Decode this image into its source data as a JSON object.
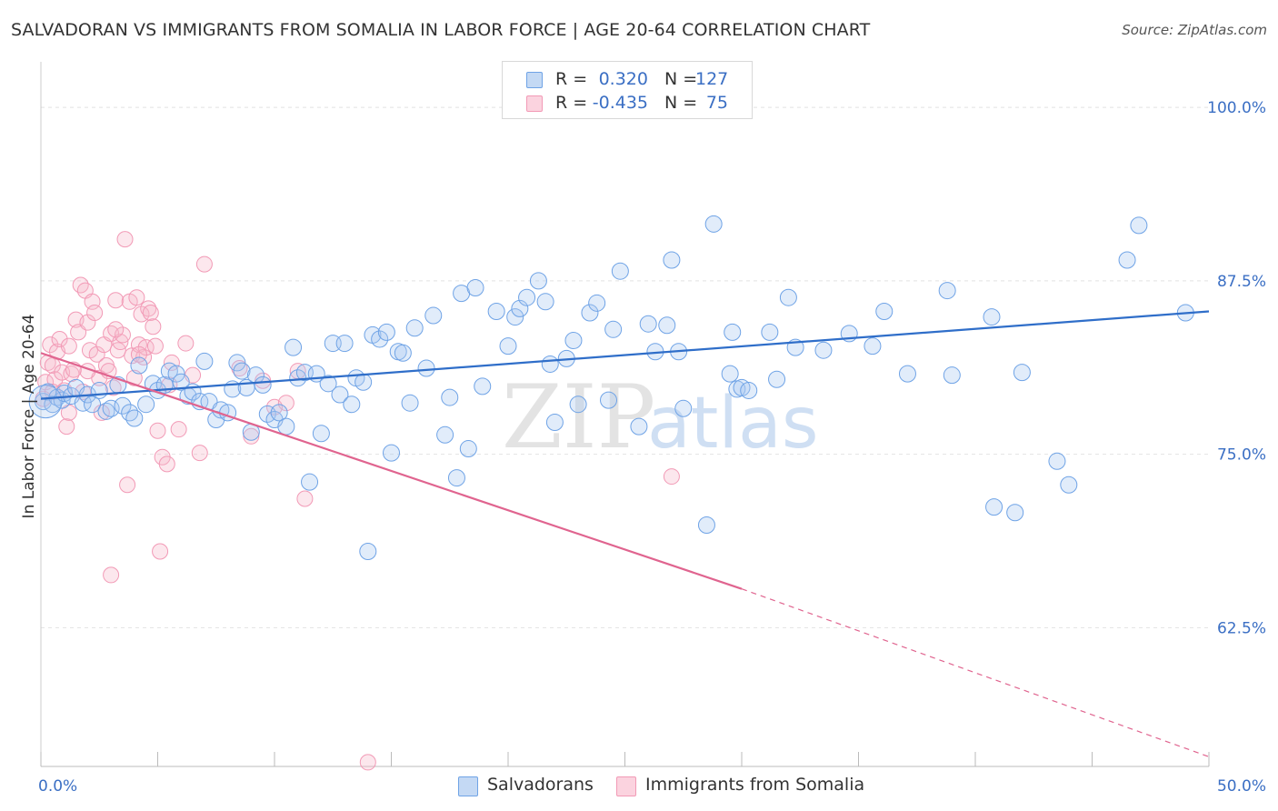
{
  "title": "SALVADORAN VS IMMIGRANTS FROM SOMALIA IN LABOR FORCE | AGE 20-64 CORRELATION CHART",
  "source": "Source: ZipAtlas.com",
  "watermark": {
    "zip": "ZIP",
    "atlas": "atlas"
  },
  "legend": [
    {
      "r_label": "R =",
      "r_value": "0.320",
      "n_label": "N =",
      "n_value": "127",
      "color": "#a9c8f0"
    },
    {
      "r_label": "R =",
      "r_value": "-0.435",
      "n_label": "N =",
      "n_value": "75",
      "color": "#f7b9cc"
    }
  ],
  "bottom_legend": [
    "Salvadorans",
    "Immigrants from Somalia"
  ],
  "chart_data": {
    "type": "scatter",
    "title": "SALVADORAN VS IMMIGRANTS FROM SOMALIA IN LABOR FORCE | AGE 20-64 CORRELATION CHART",
    "xlabel": "",
    "ylabel": "In Labor Force | Age 20-64",
    "xlim": [
      0,
      50
    ],
    "ylim": [
      52.5,
      102.5
    ],
    "x_tick_labels": [
      "0.0%",
      "50.0%"
    ],
    "y_ticks": [
      100,
      87.5,
      75,
      62.5
    ],
    "y_tick_labels": [
      "100.0%",
      "87.5%",
      "75.0%",
      "62.5%"
    ],
    "grid": true,
    "legend_position": "top-center",
    "series": [
      {
        "name": "Salvadorans",
        "color": "#6fa3e6",
        "trend": {
          "x": [
            0,
            50
          ],
          "y": [
            79.0,
            85.3
          ],
          "color": "#2f6ec9"
        },
        "points": [
          [
            0.1,
            78.8
          ],
          [
            0.3,
            79.5
          ],
          [
            0.5,
            78.6
          ],
          [
            0.7,
            79.1
          ],
          [
            0.9,
            78.9
          ],
          [
            1.0,
            79.4
          ],
          [
            1.3,
            79.2
          ],
          [
            1.5,
            79.8
          ],
          [
            1.8,
            78.7
          ],
          [
            2.0,
            79.3
          ],
          [
            2.2,
            78.6
          ],
          [
            2.5,
            79.6
          ],
          [
            2.8,
            78.1
          ],
          [
            3.0,
            78.3
          ],
          [
            3.3,
            80.0
          ],
          [
            3.5,
            78.5
          ],
          [
            3.8,
            78.0
          ],
          [
            4.0,
            77.6
          ],
          [
            4.2,
            81.4
          ],
          [
            4.5,
            78.6
          ],
          [
            4.8,
            80.1
          ],
          [
            5.0,
            79.6
          ],
          [
            5.3,
            80.0
          ],
          [
            5.5,
            81.0
          ],
          [
            5.8,
            80.8
          ],
          [
            6.0,
            80.2
          ],
          [
            6.3,
            79.2
          ],
          [
            6.5,
            79.5
          ],
          [
            6.8,
            78.8
          ],
          [
            7.0,
            81.7
          ],
          [
            7.2,
            78.8
          ],
          [
            7.5,
            77.5
          ],
          [
            7.7,
            78.2
          ],
          [
            8.0,
            78.0
          ],
          [
            8.2,
            79.7
          ],
          [
            8.4,
            81.6
          ],
          [
            8.6,
            81.0
          ],
          [
            8.8,
            79.8
          ],
          [
            9.0,
            76.6
          ],
          [
            9.2,
            80.7
          ],
          [
            9.5,
            80.0
          ],
          [
            9.7,
            77.9
          ],
          [
            10.0,
            77.5
          ],
          [
            10.2,
            78.0
          ],
          [
            10.5,
            77.0
          ],
          [
            10.8,
            82.7
          ],
          [
            11.0,
            80.5
          ],
          [
            11.3,
            80.9
          ],
          [
            11.5,
            73.0
          ],
          [
            11.8,
            80.8
          ],
          [
            12.0,
            76.5
          ],
          [
            12.3,
            80.1
          ],
          [
            12.5,
            83.0
          ],
          [
            12.8,
            79.3
          ],
          [
            13.0,
            83.0
          ],
          [
            13.3,
            78.6
          ],
          [
            13.5,
            80.5
          ],
          [
            13.8,
            80.2
          ],
          [
            14.0,
            68.0
          ],
          [
            14.2,
            83.6
          ],
          [
            14.5,
            83.3
          ],
          [
            14.8,
            83.8
          ],
          [
            15.0,
            75.1
          ],
          [
            15.3,
            82.4
          ],
          [
            15.5,
            82.3
          ],
          [
            15.8,
            78.7
          ],
          [
            16.0,
            84.1
          ],
          [
            16.5,
            81.2
          ],
          [
            16.8,
            85.0
          ],
          [
            17.3,
            76.4
          ],
          [
            17.5,
            79.1
          ],
          [
            17.8,
            73.3
          ],
          [
            18.0,
            86.6
          ],
          [
            18.3,
            75.4
          ],
          [
            18.6,
            87.0
          ],
          [
            18.9,
            79.9
          ],
          [
            19.5,
            85.3
          ],
          [
            20.0,
            82.8
          ],
          [
            20.3,
            84.9
          ],
          [
            20.5,
            85.5
          ],
          [
            20.8,
            86.3
          ],
          [
            21.3,
            87.5
          ],
          [
            21.6,
            86.0
          ],
          [
            21.8,
            81.5
          ],
          [
            22.0,
            77.3
          ],
          [
            22.5,
            81.9
          ],
          [
            22.8,
            83.2
          ],
          [
            23.0,
            78.6
          ],
          [
            23.5,
            85.2
          ],
          [
            23.8,
            85.9
          ],
          [
            24.3,
            78.9
          ],
          [
            24.5,
            84.0
          ],
          [
            24.8,
            88.2
          ],
          [
            25.6,
            77.0
          ],
          [
            26.0,
            84.4
          ],
          [
            26.3,
            82.4
          ],
          [
            26.8,
            84.3
          ],
          [
            27.0,
            89.0
          ],
          [
            27.3,
            82.4
          ],
          [
            27.5,
            78.3
          ],
          [
            28.5,
            69.9
          ],
          [
            28.8,
            91.6
          ],
          [
            29.5,
            80.8
          ],
          [
            29.6,
            83.8
          ],
          [
            29.8,
            79.7
          ],
          [
            30.0,
            79.8
          ],
          [
            30.3,
            79.6
          ],
          [
            31.2,
            83.8
          ],
          [
            31.5,
            80.4
          ],
          [
            32.0,
            86.3
          ],
          [
            32.3,
            82.7
          ],
          [
            33.5,
            82.5
          ],
          [
            34.6,
            83.7
          ],
          [
            35.6,
            82.8
          ],
          [
            36.1,
            85.3
          ],
          [
            37.1,
            80.8
          ],
          [
            38.8,
            86.8
          ],
          [
            39.0,
            80.7
          ],
          [
            40.7,
            84.9
          ],
          [
            40.8,
            71.2
          ],
          [
            41.7,
            70.8
          ],
          [
            42.0,
            80.9
          ],
          [
            43.5,
            74.5
          ],
          [
            44.0,
            72.8
          ],
          [
            46.5,
            89.0
          ],
          [
            47.0,
            91.5
          ],
          [
            49.0,
            85.2
          ]
        ]
      },
      {
        "name": "Immigrants from Somalia",
        "color": "#f29ab6",
        "trend": {
          "x": [
            0,
            30
          ],
          "y": [
            82.3,
            65.3
          ],
          "dashed_x": [
            30,
            50
          ],
          "dashed_y": [
            65.3,
            53.2
          ],
          "color": "#e0648f"
        },
        "points": [
          [
            0.1,
            79.0
          ],
          [
            0.2,
            80.2
          ],
          [
            0.3,
            81.6
          ],
          [
            0.4,
            82.9
          ],
          [
            0.5,
            81.4
          ],
          [
            0.6,
            80.4
          ],
          [
            0.7,
            82.4
          ],
          [
            0.8,
            83.3
          ],
          [
            0.9,
            80.9
          ],
          [
            1.0,
            79.6
          ],
          [
            1.1,
            77.0
          ],
          [
            1.2,
            82.8
          ],
          [
            1.3,
            80.8
          ],
          [
            1.4,
            81.1
          ],
          [
            1.5,
            84.7
          ],
          [
            1.6,
            83.8
          ],
          [
            1.7,
            87.2
          ],
          [
            1.8,
            79.5
          ],
          [
            1.9,
            86.8
          ],
          [
            2.0,
            84.5
          ],
          [
            2.1,
            82.5
          ],
          [
            2.2,
            86.0
          ],
          [
            2.3,
            85.2
          ],
          [
            2.4,
            82.2
          ],
          [
            2.5,
            80.5
          ],
          [
            2.6,
            78.0
          ],
          [
            2.7,
            82.9
          ],
          [
            2.8,
            81.4
          ],
          [
            2.9,
            81.0
          ],
          [
            3.0,
            83.7
          ],
          [
            3.1,
            79.8
          ],
          [
            3.2,
            86.1
          ],
          [
            3.3,
            82.5
          ],
          [
            3.4,
            83.1
          ],
          [
            3.5,
            83.6
          ],
          [
            3.6,
            90.5
          ],
          [
            3.7,
            72.8
          ],
          [
            3.8,
            86.0
          ],
          [
            3.9,
            82.1
          ],
          [
            4.0,
            80.5
          ],
          [
            4.1,
            86.3
          ],
          [
            4.2,
            82.9
          ],
          [
            4.3,
            85.1
          ],
          [
            4.4,
            82.0
          ],
          [
            4.5,
            82.7
          ],
          [
            4.6,
            85.5
          ],
          [
            4.7,
            85.2
          ],
          [
            4.8,
            84.2
          ],
          [
            4.9,
            82.8
          ],
          [
            5.0,
            76.7
          ],
          [
            5.1,
            68.0
          ],
          [
            5.2,
            74.8
          ],
          [
            5.4,
            74.3
          ],
          [
            5.6,
            81.6
          ],
          [
            5.9,
            76.8
          ],
          [
            6.2,
            83.0
          ],
          [
            6.5,
            80.7
          ],
          [
            6.8,
            75.1
          ],
          [
            7.0,
            88.7
          ],
          [
            3.0,
            66.3
          ],
          [
            8.5,
            81.2
          ],
          [
            9.0,
            76.3
          ],
          [
            9.5,
            80.3
          ],
          [
            10.0,
            78.4
          ],
          [
            10.5,
            78.7
          ],
          [
            11.0,
            81.0
          ],
          [
            11.3,
            71.8
          ],
          [
            14.0,
            52.8
          ],
          [
            27.0,
            73.4
          ],
          [
            0.5,
            79.5
          ],
          [
            1.2,
            78.0
          ],
          [
            2.0,
            81.0
          ],
          [
            3.2,
            84.0
          ],
          [
            4.2,
            82.2
          ],
          [
            5.5,
            80.0
          ]
        ]
      }
    ]
  }
}
